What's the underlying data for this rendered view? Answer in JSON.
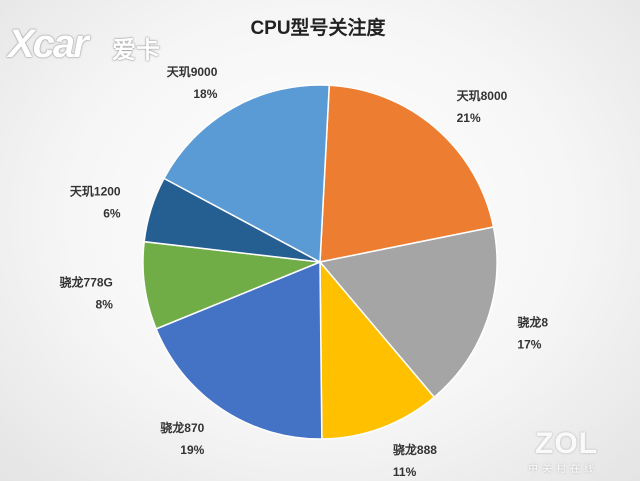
{
  "watermarks": {
    "logo_left": "Xcar",
    "logo_left_cn": "爱卡",
    "logo_right": "ZOL",
    "logo_right_sub": "中关村在线"
  },
  "chart_data": {
    "type": "pie",
    "title": "CPU型号关注度",
    "slices": [
      {
        "label": "天玑8000",
        "value": 21,
        "pct": "21%",
        "color": "#ED7D31"
      },
      {
        "label": "骁龙8",
        "value": 17,
        "pct": "17%",
        "color": "#A5A5A5"
      },
      {
        "label": "骁龙888",
        "value": 11,
        "pct": "11%",
        "color": "#FFC000"
      },
      {
        "label": "骁龙870",
        "value": 19,
        "pct": "19%",
        "color": "#4472C4"
      },
      {
        "label": "骁龙778G",
        "value": 8,
        "pct": "8%",
        "color": "#70AD47"
      },
      {
        "label": "天玑1200",
        "value": 6,
        "pct": "6%",
        "color": "#255E91"
      },
      {
        "label": "天玑9000",
        "value": 18,
        "pct": "18%",
        "color": "#5B9BD5"
      }
    ],
    "legend": "none",
    "data_labels": "outside"
  }
}
